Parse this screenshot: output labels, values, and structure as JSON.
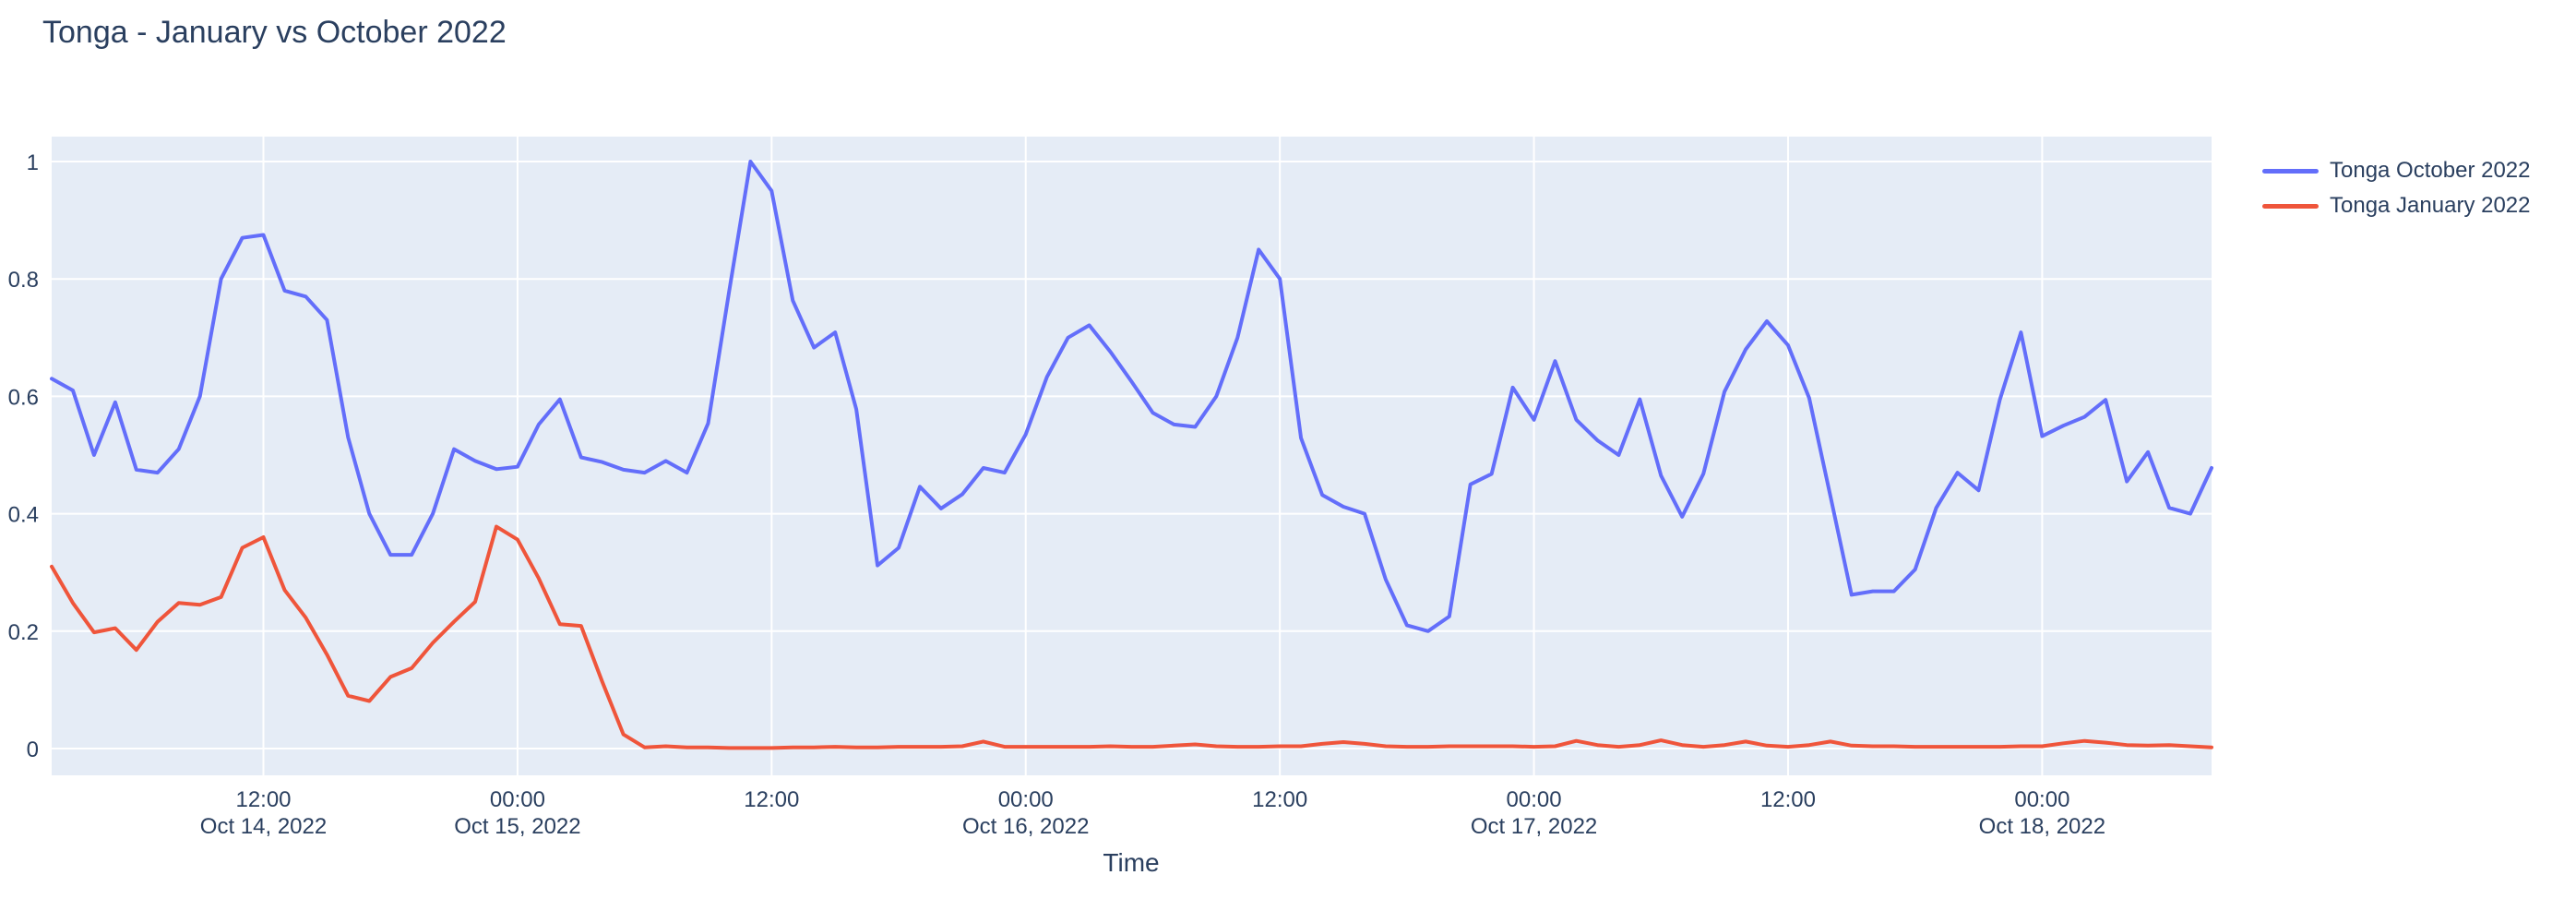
{
  "title": "Tonga - January vs October 2022",
  "colors": {
    "accent_blue": "#636EFA",
    "accent_red": "#EF553B",
    "plot_background": "#E5ECF6",
    "grid": "#FFFFFF",
    "text": "#2a3f5f"
  },
  "chart_data": {
    "type": "line",
    "title": "Tonga - January vs October 2022",
    "xlabel": "Time",
    "ylabel": "",
    "ylim": [
      0,
      1
    ],
    "grid": true,
    "legend_position": "top-right-outside",
    "plot_bg": "#E5ECF6",
    "x_start": "2022-10-14 02:00",
    "x_step_hours": 1,
    "n_points": 103,
    "y_ticks": [
      {
        "v": 0,
        "label": "0"
      },
      {
        "v": 0.2,
        "label": "0.2"
      },
      {
        "v": 0.4,
        "label": "0.4"
      },
      {
        "v": 0.6,
        "label": "0.6"
      },
      {
        "v": 0.8,
        "label": "0.8"
      },
      {
        "v": 1,
        "label": "1"
      }
    ],
    "x_ticks": [
      {
        "hour": 10,
        "time": "12:00",
        "date": "Oct 14, 2022"
      },
      {
        "hour": 22,
        "time": "00:00",
        "date": "Oct 15, 2022"
      },
      {
        "hour": 34,
        "time": "12:00",
        "date": ""
      },
      {
        "hour": 46,
        "time": "00:00",
        "date": "Oct 16, 2022"
      },
      {
        "hour": 58,
        "time": "12:00",
        "date": ""
      },
      {
        "hour": 70,
        "time": "00:00",
        "date": "Oct 17, 2022"
      },
      {
        "hour": 82,
        "time": "12:00",
        "date": ""
      },
      {
        "hour": 94,
        "time": "00:00",
        "date": "Oct 18, 2022"
      }
    ],
    "series": [
      {
        "name": "Tonga October 2022",
        "color": "#636EFA",
        "values": [
          0.63,
          0.61,
          0.5,
          0.59,
          0.475,
          0.47,
          0.51,
          0.6,
          0.8,
          0.87,
          0.875,
          0.78,
          0.77,
          0.73,
          0.53,
          0.4,
          0.33,
          0.33,
          0.4,
          0.51,
          0.49,
          0.476,
          0.48,
          0.552,
          0.595,
          0.496,
          0.488,
          0.475,
          0.47,
          0.49,
          0.47,
          0.554,
          0.78,
          1.0,
          0.95,
          0.763,
          0.683,
          0.709,
          0.578,
          0.312,
          0.342,
          0.446,
          0.409,
          0.433,
          0.478,
          0.47,
          0.535,
          0.633,
          0.7,
          0.721,
          0.676,
          0.625,
          0.572,
          0.552,
          0.548,
          0.6,
          0.7,
          0.85,
          0.8,
          0.529,
          0.432,
          0.412,
          0.4,
          0.288,
          0.21,
          0.2,
          0.225,
          0.45,
          0.468,
          0.615,
          0.56,
          0.66,
          0.56,
          0.525,
          0.5,
          0.595,
          0.465,
          0.395,
          0.468,
          0.608,
          0.68,
          0.728,
          0.687,
          0.597,
          0.43,
          0.262,
          0.268,
          0.268,
          0.305,
          0.41,
          0.47,
          0.44,
          0.594,
          0.709,
          0.532,
          0.55,
          0.565,
          0.594,
          0.455,
          0.505,
          0.41,
          0.4,
          0.478
        ]
      },
      {
        "name": "Tonga January 2022",
        "color": "#EF553B",
        "values": [
          0.31,
          0.248,
          0.198,
          0.205,
          0.168,
          0.216,
          0.248,
          0.245,
          0.258,
          0.342,
          0.36,
          0.27,
          0.223,
          0.16,
          0.09,
          0.081,
          0.122,
          0.137,
          0.18,
          0.216,
          0.25,
          0.378,
          0.356,
          0.29,
          0.212,
          0.209,
          0.114,
          0.024,
          0.002,
          0.004,
          0.002,
          0.002,
          0.001,
          0.001,
          0.001,
          0.002,
          0.002,
          0.003,
          0.002,
          0.002,
          0.003,
          0.003,
          0.003,
          0.004,
          0.012,
          0.003,
          0.003,
          0.003,
          0.003,
          0.003,
          0.004,
          0.003,
          0.003,
          0.005,
          0.007,
          0.004,
          0.003,
          0.003,
          0.004,
          0.004,
          0.008,
          0.011,
          0.008,
          0.004,
          0.003,
          0.003,
          0.004,
          0.004,
          0.004,
          0.004,
          0.003,
          0.004,
          0.013,
          0.006,
          0.003,
          0.006,
          0.014,
          0.006,
          0.003,
          0.006,
          0.012,
          0.005,
          0.003,
          0.006,
          0.012,
          0.005,
          0.004,
          0.004,
          0.003,
          0.003,
          0.003,
          0.003,
          0.003,
          0.004,
          0.004,
          0.009,
          0.013,
          0.01,
          0.006,
          0.005,
          0.006,
          0.004,
          0.002
        ]
      }
    ]
  }
}
